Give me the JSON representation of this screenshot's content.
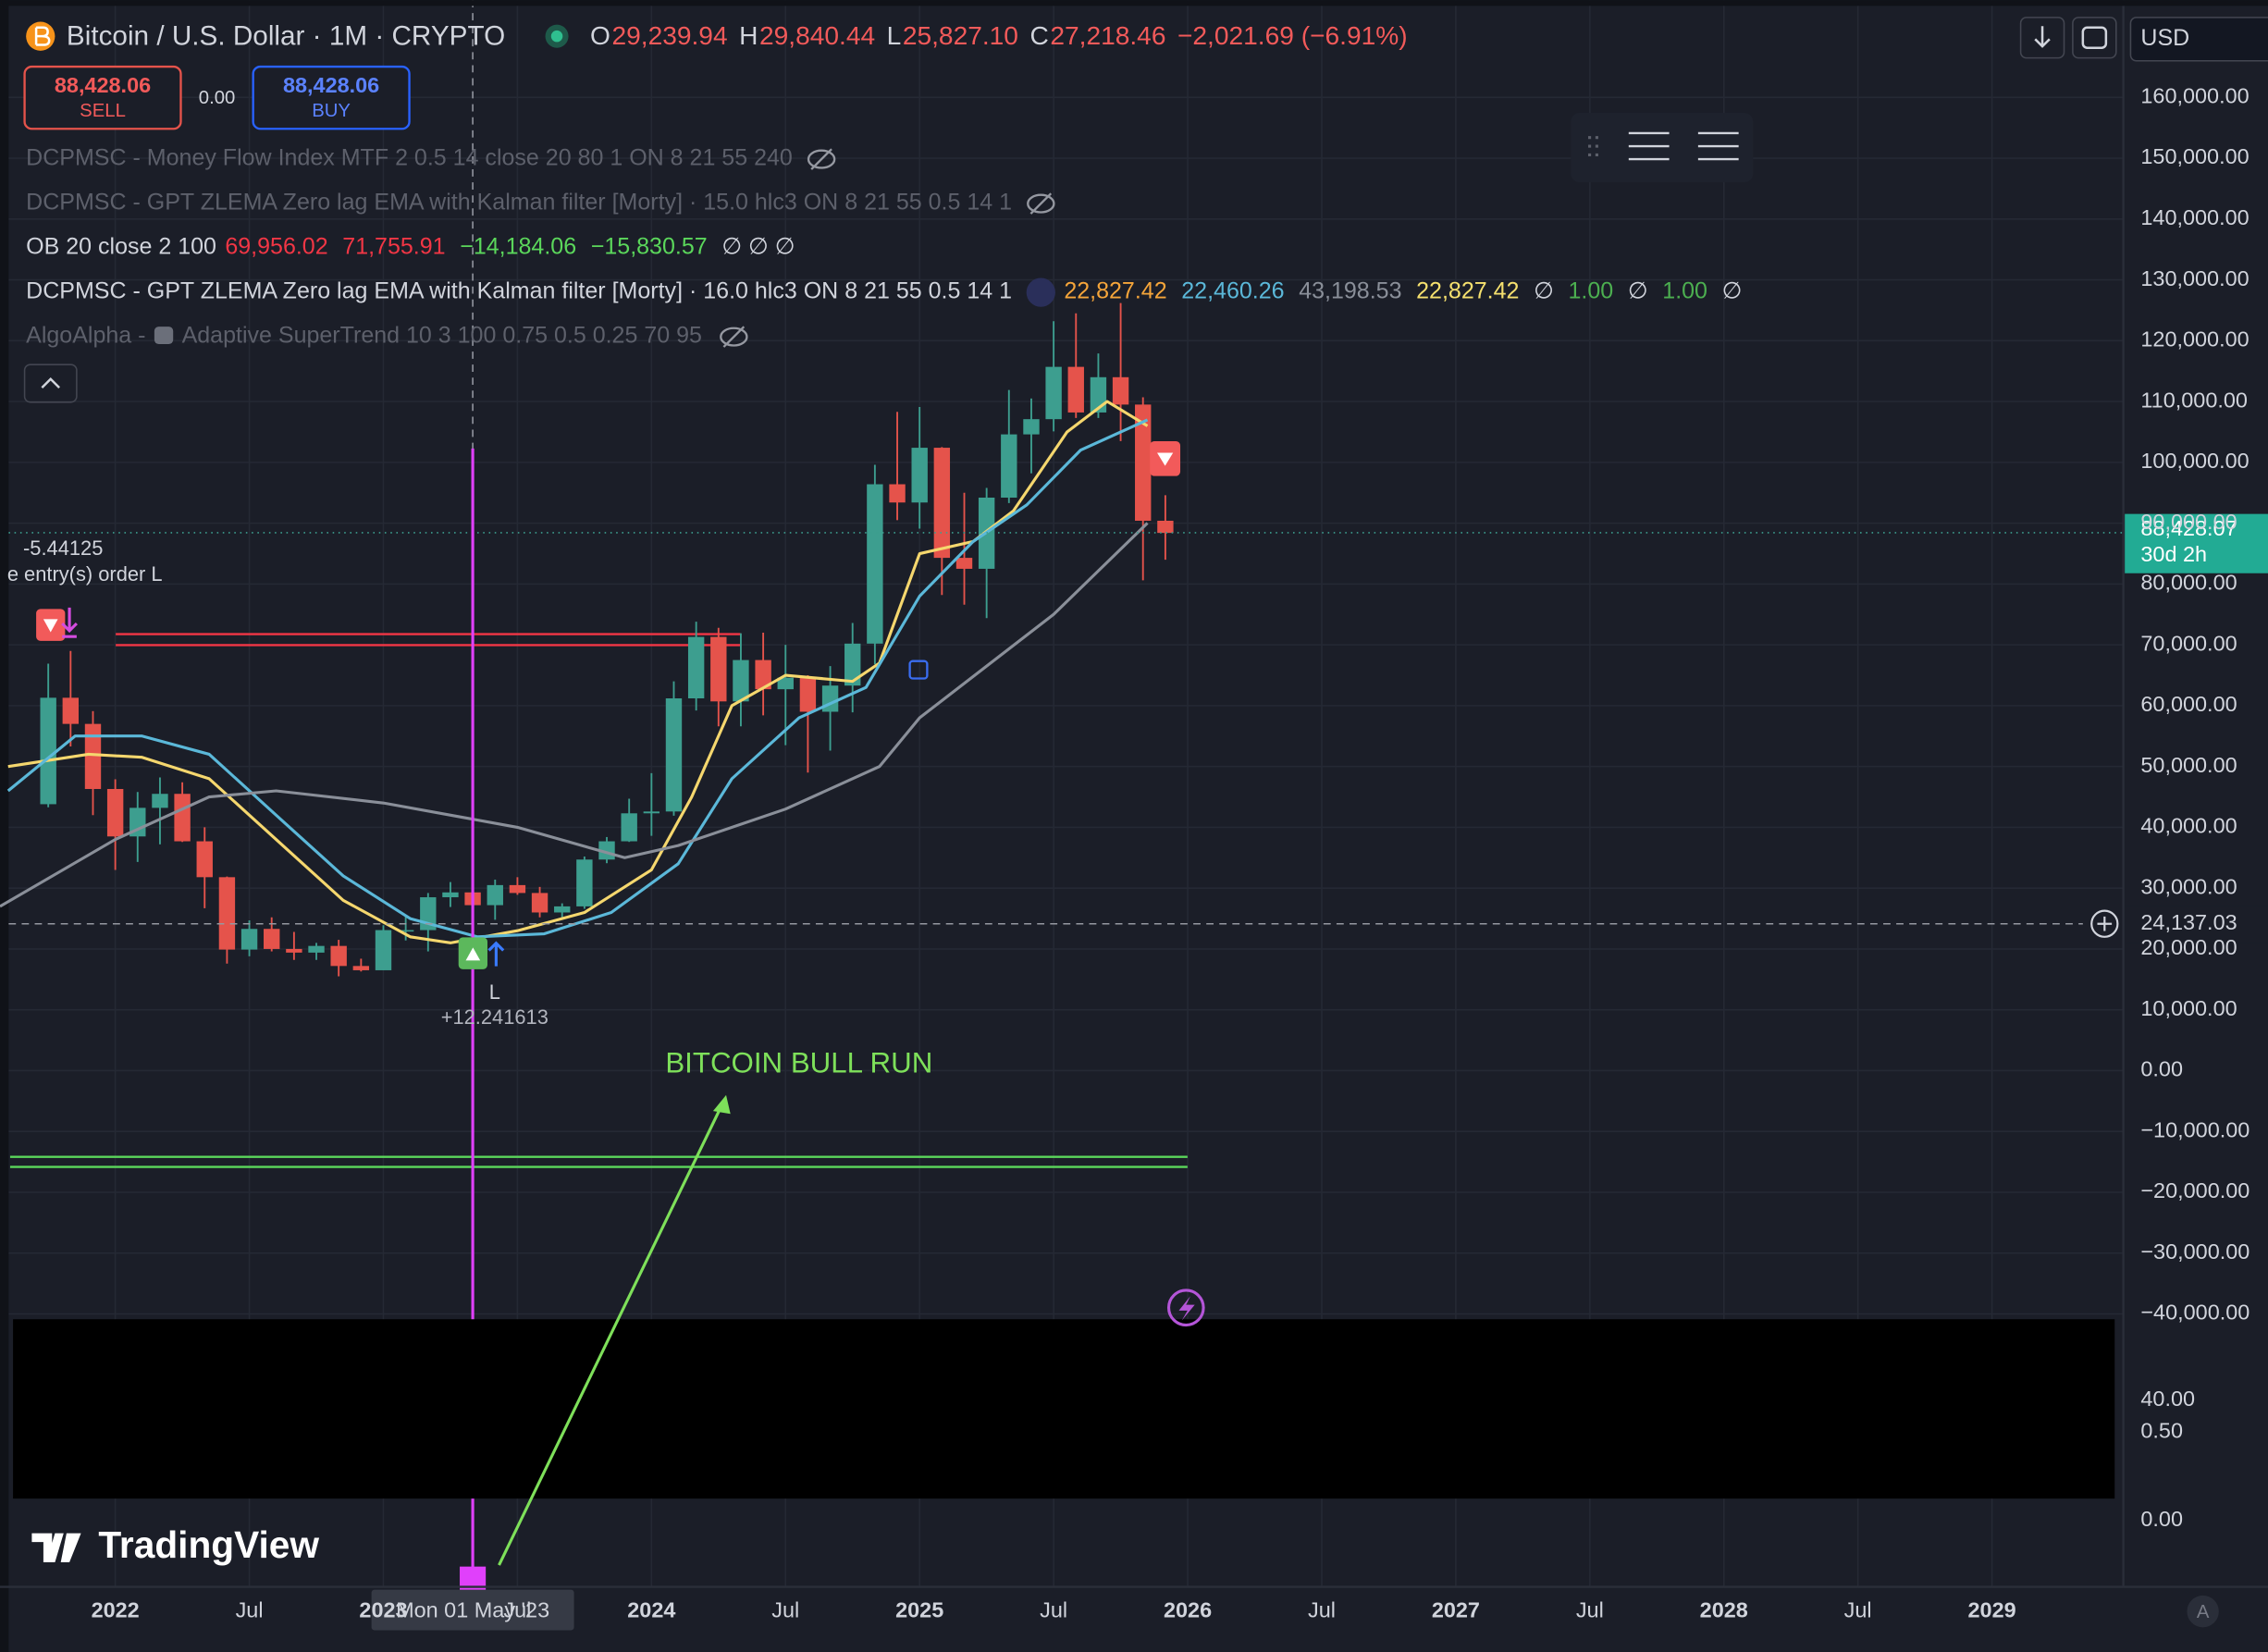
{
  "header": {
    "symbol": "Bitcoin / U.S. Dollar · 1M · CRYPTO",
    "ohlc": [
      {
        "key": "O",
        "value": "29,239.94"
      },
      {
        "key": "H",
        "value": "29,840.44"
      },
      {
        "key": "L",
        "value": "25,827.10"
      },
      {
        "key": "C",
        "value": "27,218.46"
      }
    ],
    "change": "−2,021.69 (−6.91%)",
    "currency": "USD"
  },
  "trade": {
    "sell_price": "88,428.06",
    "sell": "SELL",
    "spread": "0.00",
    "buy_price": "88,428.06",
    "buy": "BUY"
  },
  "indicators": [
    {
      "name": "DCPMSC - Money Flow Index MTF 2 0.5 14 close 20 80 1 ON 8 21 55 240",
      "hidden": true,
      "values": []
    },
    {
      "name": "DCPMSC - GPT ZLEMA Zero lag EMA with Kalman filter [Morty] · 15.0 hlc3 ON 8 21 55 0.5 14 1",
      "hidden": true,
      "values": []
    },
    {
      "name": "OB 20 close 2 100",
      "hidden": false,
      "levels": [
        {
          "value": 69956.02,
          "label": "69,956.02",
          "color": "#f23645"
        },
        {
          "value": 71755.91,
          "label": "71,755.91",
          "color": "#f23645"
        },
        {
          "value": -14184.06,
          "label": "−14,184.06",
          "color": "#5bd75b"
        },
        {
          "value": -15830.57,
          "label": "−15,830.57",
          "color": "#5bd75b"
        }
      ],
      "values": [
        {
          "text": "∅ ∅ ∅",
          "color": "#d1d4dc"
        }
      ]
    },
    {
      "name": "DCPMSC - GPT ZLEMA Zero lag EMA with Kalman filter [Morty] · 16.0 hlc3 ON 8 21 55 0.5 14 1",
      "hidden": false,
      "values": [
        {
          "text": "22,827.42",
          "color": "#f5a53a"
        },
        {
          "text": "22,460.26",
          "color": "#5bb8d9"
        },
        {
          "text": "43,198.53",
          "color": "#8a8f99"
        },
        {
          "text": "22,827.42",
          "color": "#f5e06e"
        },
        {
          "text": "∅",
          "color": "#d1d4dc"
        },
        {
          "text": "1.00",
          "color": "#4caf50"
        },
        {
          "text": "∅",
          "color": "#d1d4dc"
        },
        {
          "text": "1.00",
          "color": "#4caf50"
        },
        {
          "text": "∅",
          "color": "#d1d4dc"
        }
      ]
    },
    {
      "name": "AlgoAlpha -",
      "params": "Adaptive SuperTrend 10 3 100 0.75 0.5 0.25 70 95",
      "hidden": true,
      "values": []
    }
  ],
  "annotations": {
    "strategy_value": "-5.44125",
    "strategy_note": "e entry(s) order L",
    "entry_label": "L",
    "entry_value": "+12.241613",
    "bull_run": "BITCOIN BULL RUN"
  },
  "lower_pane": {
    "labels": [
      "40.00",
      "0.50",
      "0.00"
    ]
  },
  "brand": "TradingView",
  "auto_button": "A",
  "chart_data": {
    "type": "candlestick",
    "x": [
      2021.75,
      2021.8333,
      2021.9167,
      2022,
      2022.0833,
      2022.1667,
      2022.25,
      2022.3333,
      2022.4167,
      2022.5,
      2022.5833,
      2022.6667,
      2022.75,
      2022.8333,
      2022.9167,
      2023,
      2023.0833,
      2023.1667,
      2023.25,
      2023.3333,
      2023.4167,
      2023.5,
      2023.5833,
      2023.6667,
      2023.75,
      2023.8333,
      2023.9167,
      2024,
      2024.0833,
      2024.1667,
      2024.25,
      2024.3333,
      2024.4167,
      2024.5,
      2024.5833,
      2024.6667,
      2024.75,
      2024.8333,
      2024.9167,
      2025,
      2025.0833,
      2025.1667,
      2025.25,
      2025.3333,
      2025.4167,
      2025.5,
      2025.5833,
      2025.6667,
      2025.75,
      2025.8333,
      2025.9167
    ],
    "open": [
      43800,
      61300,
      57000,
      46300,
      38500,
      43200,
      45500,
      37700,
      31800,
      19900,
      23300,
      20000,
      19400,
      20500,
      17200,
      16500,
      23100,
      23100,
      28500,
      29300,
      27200,
      30500,
      29200,
      26000,
      27000,
      34700,
      37700,
      42300,
      42600,
      61200,
      71300,
      60700,
      67500,
      62700,
      64600,
      59000,
      63300,
      70200,
      96400,
      93400,
      102400,
      84300,
      82500,
      94200,
      104600,
      107100,
      115700,
      108200,
      114000,
      109500,
      90400
    ],
    "high": [
      66900,
      69000,
      59100,
      47900,
      45800,
      48200,
      47400,
      40000,
      31900,
      24700,
      25200,
      22800,
      21000,
      21500,
      18400,
      23900,
      25300,
      29200,
      31000,
      29800,
      31400,
      31800,
      30200,
      27500,
      35200,
      38400,
      44700,
      48900,
      64000,
      73800,
      72800,
      71900,
      72000,
      70000,
      65000,
      66500,
      73600,
      99600,
      108300,
      109100,
      102500,
      95000,
      95800,
      111900,
      110500,
      123200,
      124500,
      117900,
      126200,
      110700,
      94600
    ],
    "low": [
      43300,
      53300,
      42000,
      33000,
      34300,
      37200,
      37600,
      26700,
      17600,
      18800,
      19600,
      18200,
      18200,
      15500,
      16300,
      16500,
      21400,
      19600,
      26900,
      25800,
      24800,
      28900,
      25200,
      24900,
      26600,
      34100,
      37600,
      38600,
      41900,
      59200,
      56600,
      56600,
      58400,
      53500,
      49000,
      52600,
      58900,
      66800,
      90500,
      89100,
      78200,
      76600,
      74400,
      93300,
      98200,
      105100,
      107300,
      107300,
      103500,
      80600,
      84000
    ],
    "close": [
      61300,
      57000,
      46300,
      38500,
      43200,
      45500,
      37700,
      31800,
      19900,
      23300,
      20000,
      19400,
      20500,
      17200,
      16500,
      23100,
      23100,
      28500,
      29300,
      27200,
      30500,
      29200,
      26000,
      27000,
      34700,
      37700,
      42300,
      42600,
      61200,
      71300,
      60700,
      67500,
      62700,
      64600,
      59000,
      63300,
      70200,
      96400,
      93400,
      102400,
      84300,
      82500,
      94200,
      104600,
      107100,
      115700,
      108200,
      114000,
      109500,
      90400,
      88400
    ],
    "up_color": "#3d9e8f",
    "down_color": "#e5534b",
    "series": [
      {
        "name": "ZLEMA fast",
        "color": "#f5d76e",
        "x": [
          2021.6,
          2021.9,
          2022.1,
          2022.35,
          2022.6,
          2022.85,
          2023.1,
          2023.25,
          2023.5,
          2023.75,
          2024,
          2024.15,
          2024.3,
          2024.5,
          2024.75,
          2024.85,
          2025,
          2025.2,
          2025.35,
          2025.55,
          2025.7,
          2025.85
        ],
        "values": [
          50000,
          52000,
          51500,
          48000,
          38000,
          28000,
          22000,
          21000,
          23000,
          26000,
          33000,
          45000,
          60000,
          65000,
          64000,
          67000,
          85000,
          87000,
          92000,
          105000,
          110000,
          106000
        ]
      },
      {
        "name": "ZLEMA slow",
        "color": "#5bb8d9",
        "x": [
          2021.6,
          2021.85,
          2022.1,
          2022.35,
          2022.6,
          2022.85,
          2023.1,
          2023.35,
          2023.6,
          2023.85,
          2024.1,
          2024.3,
          2024.55,
          2024.8,
          2025,
          2025.2,
          2025.4,
          2025.6,
          2025.85
        ],
        "values": [
          46000,
          55000,
          55000,
          52000,
          42000,
          32000,
          25000,
          22000,
          22500,
          26000,
          34000,
          48000,
          58000,
          63000,
          78000,
          87000,
          93000,
          102000,
          107000
        ]
      },
      {
        "name": "Trend",
        "color": "#8a8f99",
        "x": [
          2021.57,
          2022,
          2022.35,
          2022.6,
          2023,
          2023.5,
          2023.9,
          2024.1,
          2024.5,
          2024.85,
          2025,
          2025.5,
          2025.85
        ],
        "values": [
          27000,
          38000,
          45000,
          46000,
          44000,
          40000,
          35000,
          37000,
          43000,
          50000,
          58000,
          75000,
          90000
        ]
      }
    ],
    "xlim": [
      2021.57,
      2029.49
    ],
    "ylim": [
      -40400,
      176000
    ],
    "yticks": [
      {
        "value": 160000,
        "label": "160,000.00"
      },
      {
        "value": 150000,
        "label": "150,000.00"
      },
      {
        "value": 140000,
        "label": "140,000.00"
      },
      {
        "value": 130000,
        "label": "130,000.00"
      },
      {
        "value": 120000,
        "label": "120,000.00"
      },
      {
        "value": 110000,
        "label": "110,000.00"
      },
      {
        "value": 100000,
        "label": "100,000.00"
      },
      {
        "value": 90000,
        "label": "90,000.00"
      },
      {
        "value": 80000,
        "label": "80,000.00"
      },
      {
        "value": 70000,
        "label": "70,000.00"
      },
      {
        "value": 60000,
        "label": "60,000.00"
      },
      {
        "value": 50000,
        "label": "50,000.00"
      },
      {
        "value": 40000,
        "label": "40,000.00"
      },
      {
        "value": 30000,
        "label": "30,000.00"
      },
      {
        "value": 20000,
        "label": "20,000.00"
      },
      {
        "value": 10000,
        "label": "10,000.00"
      },
      {
        "value": 0,
        "label": "0.00"
      },
      {
        "value": -10000,
        "label": "−10,000.00"
      },
      {
        "value": -20000,
        "label": "−20,000.00"
      },
      {
        "value": -30000,
        "label": "−30,000.00"
      },
      {
        "value": -40000,
        "label": "−40,000.00"
      }
    ],
    "xticks": [
      2022,
      {
        "value": 2022.5,
        "label": "Jul"
      },
      2023,
      {
        "value": 2023.5,
        "label": "Jul"
      },
      2024,
      {
        "value": 2024.5,
        "label": "Jul"
      },
      2025,
      {
        "value": 2025.5,
        "label": "Jul"
      },
      2026,
      {
        "value": 2026.5,
        "label": "Jul"
      },
      2027,
      {
        "value": 2027.5,
        "label": "Jul"
      },
      2028,
      {
        "value": 2028.5,
        "label": "Jul"
      },
      2029
    ],
    "grid": true,
    "last_price": {
      "value": 88428.07,
      "label": "88,428.07",
      "countdown": "30d 2h"
    },
    "crosshair": {
      "x": 2023.3333,
      "price": 24137.03,
      "price_label": "24,137.03",
      "date_label": "Mon 01 May '23"
    }
  }
}
